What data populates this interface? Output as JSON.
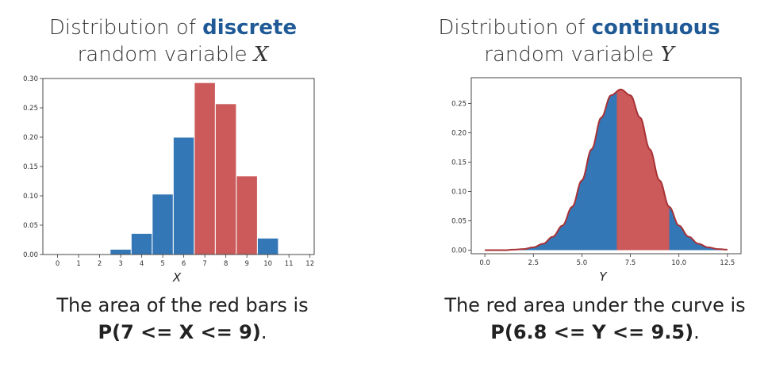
{
  "left": {
    "title_line1_prefix": "Distribution of ",
    "title_line1_emph": "discrete",
    "title_line2_prefix": "random variable ",
    "title_var": "X",
    "caption_line1": "The area of the red bars is",
    "caption_formula": "P(7 <= X <= 9)",
    "caption_end": "."
  },
  "right": {
    "title_line1_prefix": "Distribution of ",
    "title_line1_emph": "continuous",
    "title_line2_prefix": "random variable ",
    "title_var": "Y",
    "caption_line1": "The red area under the curve is",
    "caption_formula": "P(6.8 <= Y <= 9.5)",
    "caption_end": "."
  },
  "colors": {
    "blue": "#3477b6",
    "red": "#cc5a5a",
    "curve": "#a83236",
    "title_emph": "#1f5a96"
  },
  "chart_data": [
    {
      "type": "bar",
      "xlabel": "X",
      "xlim": [
        -0.7,
        12.2
      ],
      "ylim": [
        0,
        0.3
      ],
      "x_ticks": [
        0,
        1,
        2,
        3,
        4,
        5,
        6,
        7,
        8,
        9,
        10,
        11,
        12
      ],
      "y_ticks": [
        0.0,
        0.05,
        0.1,
        0.15,
        0.2,
        0.25,
        0.3
      ],
      "y_tick_labels": [
        "0.00",
        "0.05",
        "0.10",
        "0.15",
        "0.20",
        "0.25",
        "0.30"
      ],
      "bar_left_edges": [
        2.5,
        3.5,
        4.5,
        5.5,
        6.5,
        7.5,
        8.5,
        9.5
      ],
      "values": [
        0.009,
        0.036,
        0.103,
        0.2,
        0.293,
        0.257,
        0.134,
        0.028
      ],
      "highlight_bars": [
        4,
        5,
        6
      ],
      "grid": false
    },
    {
      "type": "area",
      "xlabel": "Y",
      "xlim": [
        -0.7,
        13.2
      ],
      "ylim": [
        -0.006,
        0.294
      ],
      "x_ticks": [
        0.0,
        2.5,
        5.0,
        7.5,
        10.0,
        12.5
      ],
      "x_tick_labels": [
        "0.0",
        "2.5",
        "5.0",
        "7.5",
        "10.0",
        "12.5"
      ],
      "y_ticks": [
        0.0,
        0.05,
        0.1,
        0.15,
        0.2,
        0.25
      ],
      "y_tick_labels": [
        "0.00",
        "0.05",
        "0.10",
        "0.15",
        "0.20",
        "0.25"
      ],
      "curve_x": [
        0,
        0.5,
        1,
        1.5,
        2,
        2.5,
        3,
        3.5,
        4,
        4.5,
        5,
        5.5,
        6,
        6.5,
        7,
        7.5,
        8,
        8.5,
        9,
        9.5,
        10,
        10.5,
        11,
        11.5,
        12,
        12.5
      ],
      "curve_y": [
        0.0,
        0.0,
        0.0,
        0.001,
        0.002,
        0.005,
        0.011,
        0.023,
        0.042,
        0.074,
        0.119,
        0.172,
        0.226,
        0.264,
        0.274,
        0.264,
        0.226,
        0.172,
        0.119,
        0.074,
        0.042,
        0.023,
        0.011,
        0.005,
        0.002,
        0.001
      ],
      "fill_range": [
        0,
        12.5
      ],
      "highlight_range": [
        6.8,
        9.5
      ],
      "grid": false
    }
  ]
}
